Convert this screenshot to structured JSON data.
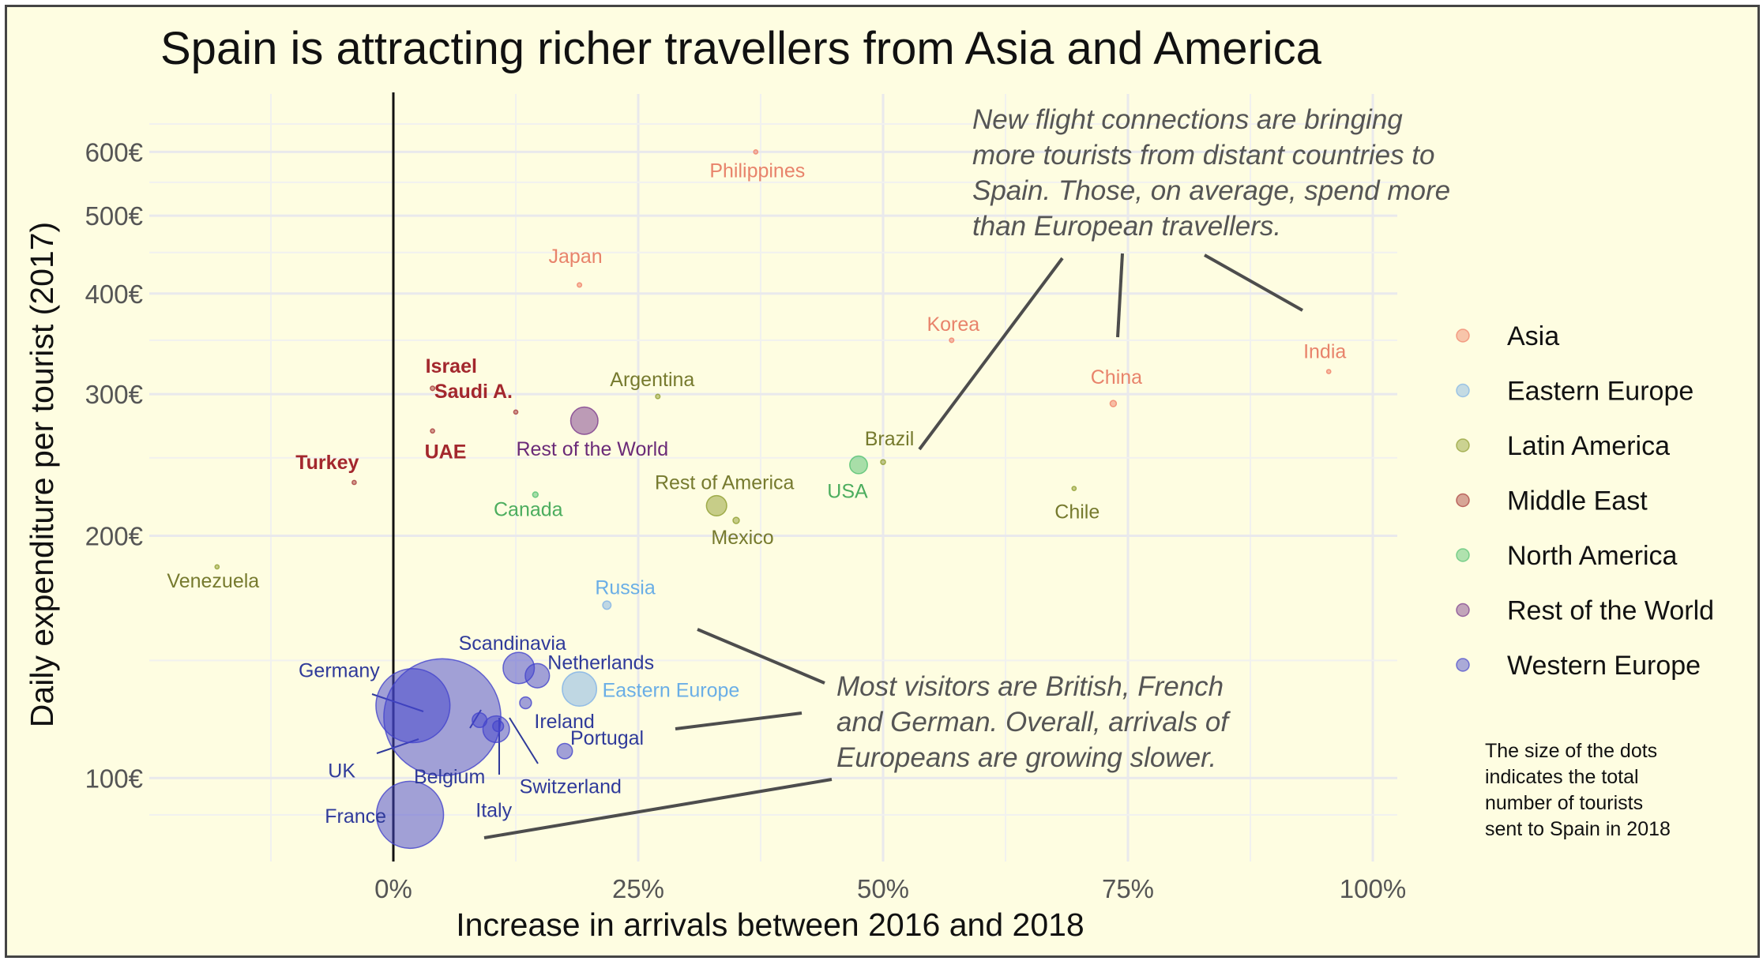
{
  "chart_data": {
    "type": "scatter",
    "title": "Spain is attracting richer travellers from Asia and America",
    "xlabel": "Increase in arrivals between 2016 and 2018",
    "ylabel": "Daily expenditure per tourist (2017)",
    "x_scale": "linear",
    "y_scale": "log",
    "xlim": [
      -0.24,
      1.02
    ],
    "ylim": [
      80,
      680
    ],
    "x_ticks": [
      {
        "value": 0,
        "label": "0%"
      },
      {
        "value": 0.25,
        "label": "25%"
      },
      {
        "value": 0.5,
        "label": "50%"
      },
      {
        "value": 0.75,
        "label": "75%"
      },
      {
        "value": 1.0,
        "label": "100%"
      }
    ],
    "y_ticks": [
      {
        "value": 100,
        "label": "100€"
      },
      {
        "value": 200,
        "label": "200€"
      },
      {
        "value": 300,
        "label": "300€"
      },
      {
        "value": 400,
        "label": "400€"
      },
      {
        "value": 500,
        "label": "500€"
      },
      {
        "value": 600,
        "label": "600€"
      }
    ],
    "grid": true,
    "zero_line": true,
    "legend_position": "right",
    "legend": [
      {
        "name": "Asia",
        "color": "#f08068"
      },
      {
        "name": "Eastern Europe",
        "color": "#7fb2e6"
      },
      {
        "name": "Latin America",
        "color": "#8f9d30"
      },
      {
        "name": "Middle East",
        "color": "#a83b3b"
      },
      {
        "name": "North America",
        "color": "#52c070"
      },
      {
        "name": "Rest of the World",
        "color": "#7a3a8c"
      },
      {
        "name": "Western Europe",
        "color": "#4444cc"
      }
    ],
    "label_colors": {
      "Asia": "#e8836b",
      "Eastern Europe": "#6aaee6",
      "Latin America": "#767a2e",
      "Middle East": "#a3272d",
      "North America": "#4cad5e",
      "Rest of the World": "#6a2a78",
      "Western Europe": "#2f3a9a"
    },
    "points": [
      {
        "label": "Philippines",
        "group": "Asia",
        "x": 0.37,
        "y": 600,
        "size": 0.3
      },
      {
        "label": "Japan",
        "group": "Asia",
        "x": 0.19,
        "y": 410,
        "size": 1
      },
      {
        "label": "Korea",
        "group": "Asia",
        "x": 0.57,
        "y": 350,
        "size": 1
      },
      {
        "label": "India",
        "group": "Asia",
        "x": 0.955,
        "y": 320,
        "size": 0.8
      },
      {
        "label": "China",
        "group": "Asia",
        "x": 0.735,
        "y": 292,
        "size": 2
      },
      {
        "label": "Israel",
        "group": "Middle East",
        "x": 0.04,
        "y": 305,
        "size": 1
      },
      {
        "label": "Saudi A.",
        "group": "Middle East",
        "x": 0.125,
        "y": 285,
        "size": 0.3
      },
      {
        "label": "UAE",
        "group": "Middle East",
        "x": 0.04,
        "y": 270,
        "size": 0.3
      },
      {
        "label": "Turkey",
        "group": "Middle East",
        "x": -0.04,
        "y": 233,
        "size": 0.8
      },
      {
        "label": "Argentina",
        "group": "Latin America",
        "x": 0.27,
        "y": 298,
        "size": 1
      },
      {
        "label": "Rest of the World",
        "group": "Rest of the World",
        "x": 0.195,
        "y": 278,
        "size": 38
      },
      {
        "label": "Brazil",
        "group": "Latin America",
        "x": 0.5,
        "y": 247,
        "size": 1.2
      },
      {
        "label": "USA",
        "group": "North America",
        "x": 0.475,
        "y": 245,
        "size": 16
      },
      {
        "label": "Chile",
        "group": "Latin America",
        "x": 0.695,
        "y": 229,
        "size": 0.5
      },
      {
        "label": "Canada",
        "group": "North America",
        "x": 0.145,
        "y": 225,
        "size": 1.5
      },
      {
        "label": "Rest of America",
        "group": "Latin America",
        "x": 0.33,
        "y": 218,
        "size": 21
      },
      {
        "label": "Mexico",
        "group": "Latin America",
        "x": 0.35,
        "y": 209,
        "size": 2
      },
      {
        "label": "Venezuela",
        "group": "Latin America",
        "x": -0.18,
        "y": 183,
        "size": 0.3
      },
      {
        "label": "Russia",
        "group": "Eastern Europe",
        "x": 0.218,
        "y": 164,
        "size": 3.5
      },
      {
        "label": "Scandinavia",
        "group": "Western Europe",
        "x": 0.128,
        "y": 137,
        "size": 50
      },
      {
        "label": "Netherlands",
        "group": "Western Europe",
        "x": 0.147,
        "y": 134,
        "size": 30
      },
      {
        "label": "Eastern Europe",
        "group": "Eastern Europe",
        "x": 0.19,
        "y": 129,
        "size": 60
      },
      {
        "label": "Germany",
        "group": "Western Europe",
        "x": 0.02,
        "y": 123,
        "size": 280
      },
      {
        "label": "Ireland",
        "group": "Western Europe",
        "x": 0.135,
        "y": 124,
        "size": 7
      },
      {
        "label": "UK",
        "group": "Western Europe",
        "x": 0.05,
        "y": 119,
        "size": 700
      },
      {
        "label": "Belgium",
        "group": "Western Europe",
        "x": 0.088,
        "y": 118,
        "size": 11
      },
      {
        "label": "Switzerland",
        "group": "Western Europe",
        "x": 0.107,
        "y": 116,
        "size": 6
      },
      {
        "label": "Italy",
        "group": "Western Europe",
        "x": 0.105,
        "y": 115,
        "size": 36
      },
      {
        "label": "Portugal",
        "group": "Western Europe",
        "x": 0.175,
        "y": 108,
        "size": 12
      },
      {
        "label": "France",
        "group": "Western Europe",
        "x": 0.017,
        "y": 90,
        "size": 230
      }
    ],
    "annotations": [
      {
        "lines": [
          "New flight connections are bringing",
          "more tourists from distant countries to",
          "Spain. Those, on average, spend more",
          "than European travellers."
        ]
      },
      {
        "lines": [
          "Most visitors are British, French",
          "and German. Overall, arrivals of",
          "Europeans are growing slower."
        ]
      }
    ],
    "size_note": [
      "The size of the dots",
      "indicates the total",
      "number of tourists",
      "sent to Spain in 2018"
    ]
  }
}
